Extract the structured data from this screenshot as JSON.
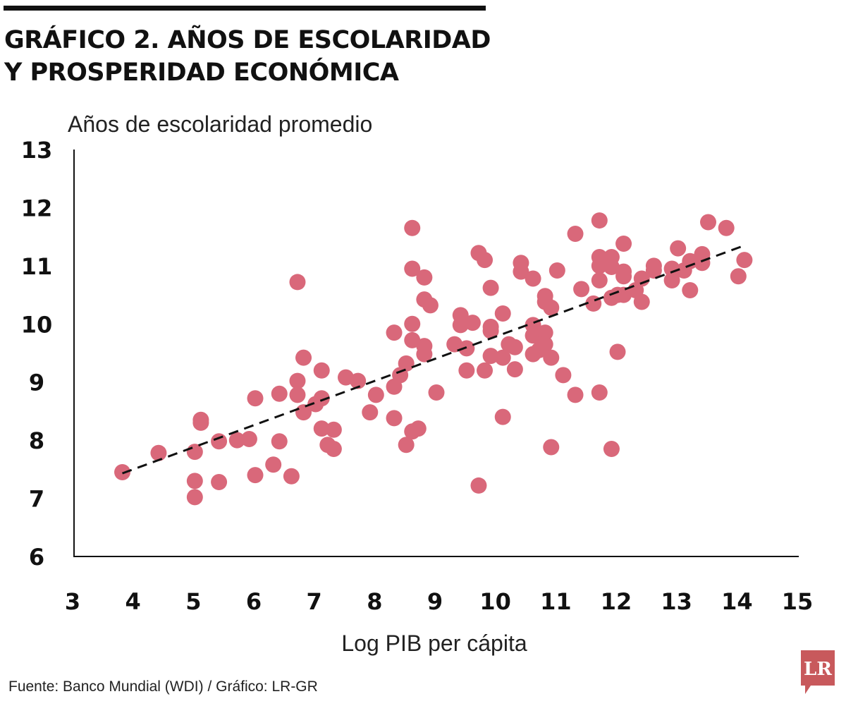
{
  "header": {
    "title_line1": "GRÁFICO 2. AÑOS DE ESCOLARIDAD",
    "title_line2": "Y PROSPERIDAD ECONÓMICA"
  },
  "footer": {
    "source": "Fuente: Banco Mundial (WDI) / Gráfico: LR-GR"
  },
  "logo": {
    "text": "LR",
    "color": "#c8595c"
  },
  "colors": {
    "points": "#d9687a",
    "trend": "#111111",
    "axis": "#111111"
  },
  "chart_data": {
    "type": "scatter",
    "title": "GRÁFICO 2. AÑOS DE ESCOLARIDAD Y PROSPERIDAD ECONÓMICA",
    "xlabel": "Log PIB per cápita",
    "ylabel": "Años de escolaridad promedio",
    "xlim": [
      3,
      15
    ],
    "ylim": [
      6,
      13
    ],
    "xticks": [
      "3",
      "4",
      "5",
      "6",
      "7",
      "8",
      "9",
      "10",
      "11",
      "12",
      "13",
      "14",
      "15"
    ],
    "yticks": [
      "6",
      "7",
      "8",
      "9",
      "10",
      "11",
      "12",
      "13"
    ],
    "grid": false,
    "trendline": {
      "x": [
        3.8,
        14.05
      ],
      "y": [
        7.43,
        11.33
      ]
    },
    "points": [
      [
        3.8,
        7.45
      ],
      [
        4.4,
        7.78
      ],
      [
        5.0,
        7.02
      ],
      [
        5.0,
        7.3
      ],
      [
        5.0,
        7.8
      ],
      [
        5.1,
        8.3
      ],
      [
        5.1,
        8.35
      ],
      [
        5.4,
        7.98
      ],
      [
        5.4,
        7.28
      ],
      [
        5.7,
        8.0
      ],
      [
        5.9,
        8.02
      ],
      [
        6.0,
        8.72
      ],
      [
        6.0,
        7.4
      ],
      [
        6.3,
        7.58
      ],
      [
        6.4,
        8.8
      ],
      [
        6.4,
        7.98
      ],
      [
        6.6,
        7.38
      ],
      [
        6.7,
        10.72
      ],
      [
        6.7,
        9.02
      ],
      [
        6.7,
        8.78
      ],
      [
        6.8,
        9.42
      ],
      [
        6.8,
        8.48
      ],
      [
        7.0,
        8.62
      ],
      [
        7.1,
        9.2
      ],
      [
        7.1,
        8.72
      ],
      [
        7.1,
        8.2
      ],
      [
        7.2,
        7.92
      ],
      [
        7.3,
        8.18
      ],
      [
        7.3,
        7.85
      ],
      [
        7.5,
        9.08
      ],
      [
        7.7,
        9.02
      ],
      [
        7.9,
        8.48
      ],
      [
        8.0,
        8.78
      ],
      [
        8.3,
        9.85
      ],
      [
        8.3,
        8.92
      ],
      [
        8.3,
        8.38
      ],
      [
        8.4,
        9.12
      ],
      [
        8.5,
        9.32
      ],
      [
        8.5,
        7.92
      ],
      [
        8.6,
        11.65
      ],
      [
        8.6,
        10.95
      ],
      [
        8.6,
        10.0
      ],
      [
        8.6,
        9.72
      ],
      [
        8.6,
        8.15
      ],
      [
        8.7,
        8.2
      ],
      [
        8.8,
        10.8
      ],
      [
        8.8,
        10.42
      ],
      [
        8.8,
        9.62
      ],
      [
        8.8,
        9.48
      ],
      [
        8.9,
        10.32
      ],
      [
        9.0,
        8.82
      ],
      [
        9.3,
        9.65
      ],
      [
        9.4,
        10.15
      ],
      [
        9.4,
        9.98
      ],
      [
        9.5,
        9.58
      ],
      [
        9.5,
        9.2
      ],
      [
        9.6,
        10.02
      ],
      [
        9.7,
        11.22
      ],
      [
        9.7,
        7.22
      ],
      [
        9.8,
        11.1
      ],
      [
        9.8,
        9.2
      ],
      [
        9.9,
        10.62
      ],
      [
        9.9,
        9.95
      ],
      [
        9.9,
        9.88
      ],
      [
        9.9,
        9.45
      ],
      [
        10.1,
        10.18
      ],
      [
        10.1,
        9.42
      ],
      [
        10.1,
        8.4
      ],
      [
        10.2,
        9.65
      ],
      [
        10.3,
        9.6
      ],
      [
        10.3,
        9.22
      ],
      [
        10.4,
        11.05
      ],
      [
        10.4,
        10.9
      ],
      [
        10.6,
        10.78
      ],
      [
        10.6,
        9.98
      ],
      [
        10.6,
        9.8
      ],
      [
        10.6,
        9.48
      ],
      [
        10.7,
        9.55
      ],
      [
        10.8,
        10.48
      ],
      [
        10.8,
        9.85
      ],
      [
        10.8,
        9.65
      ],
      [
        10.8,
        10.38
      ],
      [
        10.9,
        10.28
      ],
      [
        10.9,
        7.88
      ],
      [
        10.9,
        9.42
      ],
      [
        11.0,
        10.92
      ],
      [
        11.1,
        9.12
      ],
      [
        11.3,
        11.55
      ],
      [
        11.3,
        8.78
      ],
      [
        11.4,
        10.6
      ],
      [
        11.6,
        10.35
      ],
      [
        11.7,
        11.78
      ],
      [
        11.7,
        11.15
      ],
      [
        11.7,
        11.0
      ],
      [
        11.7,
        10.75
      ],
      [
        11.7,
        8.82
      ],
      [
        11.8,
        11.05
      ],
      [
        11.9,
        11.15
      ],
      [
        11.9,
        10.98
      ],
      [
        11.9,
        10.45
      ],
      [
        11.9,
        7.85
      ],
      [
        12.0,
        10.5
      ],
      [
        12.0,
        9.52
      ],
      [
        12.1,
        11.38
      ],
      [
        12.1,
        10.9
      ],
      [
        12.1,
        10.82
      ],
      [
        12.1,
        10.5
      ],
      [
        12.3,
        10.58
      ],
      [
        12.4,
        10.78
      ],
      [
        12.4,
        10.38
      ],
      [
        12.6,
        11.0
      ],
      [
        12.6,
        10.92
      ],
      [
        12.9,
        10.95
      ],
      [
        12.9,
        10.75
      ],
      [
        13.0,
        11.3
      ],
      [
        13.1,
        10.92
      ],
      [
        13.2,
        11.08
      ],
      [
        13.2,
        10.58
      ],
      [
        13.4,
        11.2
      ],
      [
        13.4,
        11.05
      ],
      [
        13.5,
        11.75
      ],
      [
        13.8,
        11.65
      ],
      [
        14.0,
        10.82
      ],
      [
        14.1,
        11.1
      ]
    ]
  }
}
